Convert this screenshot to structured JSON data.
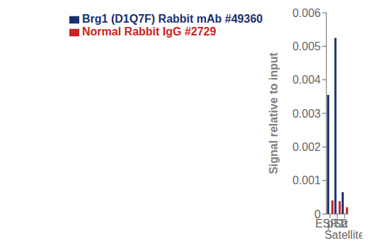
{
  "chart_data": {
    "type": "bar",
    "categories": [
      "ESR1",
      "pS2",
      "α Satellite"
    ],
    "series": [
      {
        "name": "Brg1 (D1Q7F) Rabbit mAb #49360",
        "color": "#1a2f6e",
        "values": [
          0.00355,
          0.00525,
          0.00065
        ]
      },
      {
        "name": "Normal Rabbit IgG #2729",
        "color": "#cc2222",
        "values": [
          0.0004,
          0.00038,
          0.0002
        ]
      }
    ],
    "ylabel": "Signal relative to input",
    "ylim": [
      0,
      0.006
    ],
    "yticks": [
      0,
      0.001,
      0.002,
      0.003,
      0.004,
      0.005,
      0.006
    ],
    "grid": false,
    "legend": "top left"
  }
}
